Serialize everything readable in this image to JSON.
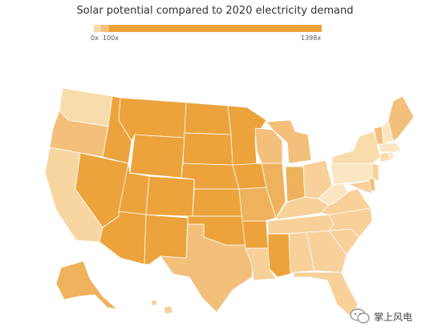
{
  "title": "Solar potential compared to 2020 electricity demand",
  "legend": {
    "min_label": "0x",
    "mid_label": "100x",
    "max_label": "1398x",
    "colors": [
      "#f7d9a8",
      "#f1c07a",
      "#eba23b"
    ]
  },
  "watermark": {
    "text": "掌上风电",
    "icon": "wechat-icon"
  },
  "colors": {
    "very_light": "#fbe6c4",
    "light": "#f7d09a",
    "medium_light": "#f3c07c",
    "medium": "#eeb25c",
    "dark": "#eca33c",
    "border": "#ffffff"
  }
}
